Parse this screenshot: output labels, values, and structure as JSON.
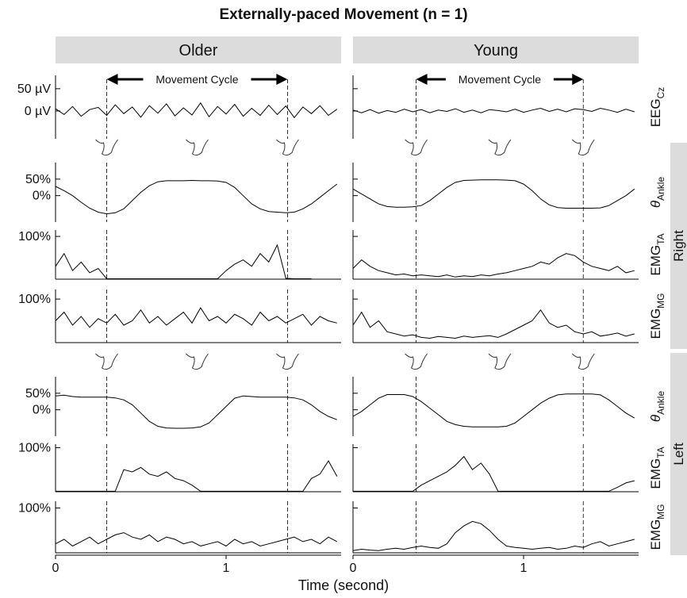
{
  "chart_data": {
    "type": "line",
    "title": "Externally-paced Movement (n = 1)",
    "xlabel": "Time (second)",
    "annotation": "Movement Cycle",
    "xlim": [
      0,
      1.66
    ],
    "xticks": [
      0,
      1
    ],
    "color": "#000000",
    "x": [
      0,
      0.05,
      0.1,
      0.15,
      0.2,
      0.25,
      0.3,
      0.35,
      0.4,
      0.45,
      0.5,
      0.55,
      0.6,
      0.65,
      0.7,
      0.75,
      0.8,
      0.85,
      0.9,
      0.95,
      1,
      1.05,
      1.1,
      1.15,
      1.2,
      1.25,
      1.3,
      1.35,
      1.4,
      1.45,
      1.5,
      1.55,
      1.6,
      1.65
    ],
    "columns": [
      {
        "name": "Older",
        "cycle": [
          0.3,
          1.36
        ]
      },
      {
        "name": "Young",
        "cycle": [
          0.37,
          1.35
        ]
      }
    ],
    "sides": [
      "Right",
      "Left"
    ],
    "rows": [
      {
        "label": "EEG",
        "sub": "Cz",
        "ylim": [
          -62.5,
          80
        ],
        "yticks": [
          {
            "value": 50,
            "label": "50 µV"
          },
          {
            "value": 0,
            "label": "0 µV"
          }
        ],
        "values": [
          [
            5,
            -8,
            10,
            -12,
            3,
            8,
            -10,
            14,
            -6,
            9,
            -14,
            12,
            -5,
            16,
            -11,
            7,
            -9,
            18,
            -13,
            10,
            -7,
            15,
            -12,
            6,
            -10,
            13,
            -8,
            11,
            -15,
            9,
            -6,
            12,
            -10,
            4
          ],
          [
            2,
            -4,
            3,
            -5,
            1,
            -3,
            4,
            -2,
            3,
            -4,
            2,
            -1,
            5,
            -3,
            2,
            -4,
            3,
            1,
            -2,
            4,
            -3,
            2,
            6,
            -1,
            4,
            -2,
            5,
            3,
            -1,
            6,
            2,
            -3,
            4,
            -2
          ]
        ]
      },
      {
        "label": "θ",
        "sub": "Ankle",
        "ylim": [
          -80,
          100
        ],
        "yticks": [
          {
            "value": 50,
            "label": "50%"
          },
          {
            "value": 0,
            "label": "0%"
          }
        ],
        "values": [
          [
            28,
            15,
            0,
            -20,
            -38,
            -50,
            -55,
            -52,
            -40,
            -15,
            10,
            30,
            42,
            45,
            45,
            45,
            46,
            45,
            45,
            44,
            40,
            25,
            0,
            -25,
            -40,
            -48,
            -50,
            -52,
            -50,
            -40,
            -25,
            -5,
            15,
            35
          ],
          [
            20,
            5,
            -10,
            -25,
            -33,
            -35,
            -35,
            -34,
            -30,
            -15,
            5,
            25,
            40,
            46,
            47,
            48,
            48,
            48,
            47,
            45,
            35,
            15,
            -10,
            -28,
            -36,
            -38,
            -38,
            -38,
            -38,
            -37,
            -30,
            -15,
            0,
            20
          ]
        ]
      },
      {
        "label": "EMG",
        "sub": "TA",
        "ylim": [
          0,
          115
        ],
        "yticks": [
          {
            "value": 100,
            "label": "100%"
          }
        ],
        "values": [
          [
            30,
            60,
            20,
            40,
            15,
            25,
            1,
            1,
            1,
            1,
            1,
            1,
            1,
            1,
            1,
            1,
            1,
            1,
            1,
            1,
            20,
            35,
            45,
            30,
            60,
            40,
            80,
            2,
            1,
            1,
            1,
            null,
            null,
            null
          ],
          [
            25,
            45,
            30,
            20,
            15,
            10,
            12,
            8,
            10,
            8,
            6,
            10,
            5,
            8,
            6,
            10,
            8,
            12,
            15,
            20,
            25,
            30,
            40,
            35,
            50,
            60,
            55,
            40,
            30,
            25,
            20,
            30,
            15,
            20
          ]
        ]
      },
      {
        "label": "EMG",
        "sub": "MG",
        "ylim": [
          0,
          122
        ],
        "yticks": [
          {
            "value": 100,
            "label": "100%"
          }
        ],
        "values": [
          [
            50,
            70,
            40,
            60,
            35,
            55,
            45,
            65,
            40,
            50,
            75,
            45,
            60,
            40,
            55,
            70,
            45,
            80,
            50,
            60,
            45,
            65,
            55,
            40,
            70,
            50,
            60,
            45,
            55,
            65,
            40,
            60,
            50,
            45
          ],
          [
            40,
            70,
            35,
            50,
            25,
            20,
            15,
            18,
            12,
            10,
            14,
            12,
            10,
            15,
            12,
            14,
            16,
            12,
            20,
            30,
            40,
            50,
            75,
            45,
            35,
            40,
            25,
            20,
            25,
            15,
            18,
            22,
            15,
            20
          ]
        ]
      },
      {
        "label": "θ",
        "sub": "Ankle",
        "ylim": [
          -80,
          100
        ],
        "yticks": [
          {
            "value": 50,
            "label": "50%"
          },
          {
            "value": 0,
            "label": "0%"
          }
        ],
        "values": [
          [
            42,
            44,
            40,
            38,
            38,
            38,
            38,
            36,
            30,
            15,
            -10,
            -35,
            -50,
            -55,
            -56,
            -56,
            -55,
            -52,
            -40,
            -15,
            10,
            35,
            42,
            40,
            38,
            38,
            38,
            38,
            36,
            30,
            15,
            -5,
            -20,
            -30
          ],
          [
            -20,
            -5,
            15,
            35,
            46,
            46,
            46,
            40,
            25,
            5,
            -15,
            -35,
            -45,
            -50,
            -52,
            -52,
            -52,
            -52,
            -50,
            -40,
            -20,
            0,
            20,
            35,
            45,
            48,
            48,
            48,
            48,
            45,
            30,
            10,
            -10,
            -25
          ]
        ]
      },
      {
        "label": "EMG",
        "sub": "TA",
        "ylim": [
          0,
          108
        ],
        "yticks": [
          {
            "value": 100,
            "label": "100%"
          }
        ],
        "values": [
          [
            1,
            1,
            1,
            1,
            1,
            1,
            1,
            1,
            50,
            45,
            55,
            40,
            35,
            45,
            30,
            25,
            15,
            1,
            1,
            1,
            1,
            1,
            1,
            1,
            1,
            1,
            1,
            1,
            1,
            1,
            30,
            40,
            70,
            35
          ],
          [
            1,
            1,
            1,
            1,
            1,
            1,
            1,
            1,
            15,
            25,
            35,
            45,
            60,
            80,
            50,
            65,
            40,
            1,
            1,
            1,
            1,
            1,
            1,
            1,
            1,
            1,
            1,
            1,
            1,
            1,
            1,
            10,
            20,
            25
          ]
        ]
      },
      {
        "label": "EMG",
        "sub": "MG",
        "ylim": [
          0,
          115
        ],
        "yticks": [
          {
            "value": 100,
            "label": "100%"
          }
        ],
        "values": [
          [
            20,
            30,
            15,
            25,
            35,
            20,
            30,
            40,
            45,
            35,
            30,
            40,
            25,
            35,
            30,
            20,
            25,
            15,
            20,
            25,
            15,
            30,
            20,
            25,
            15,
            20,
            25,
            30,
            35,
            25,
            30,
            20,
            35,
            25
          ],
          [
            5,
            8,
            6,
            5,
            8,
            10,
            8,
            12,
            15,
            12,
            10,
            20,
            45,
            60,
            70,
            65,
            50,
            30,
            15,
            12,
            10,
            8,
            10,
            12,
            8,
            10,
            15,
            12,
            20,
            25,
            15,
            20,
            25,
            30
          ]
        ]
      }
    ]
  }
}
